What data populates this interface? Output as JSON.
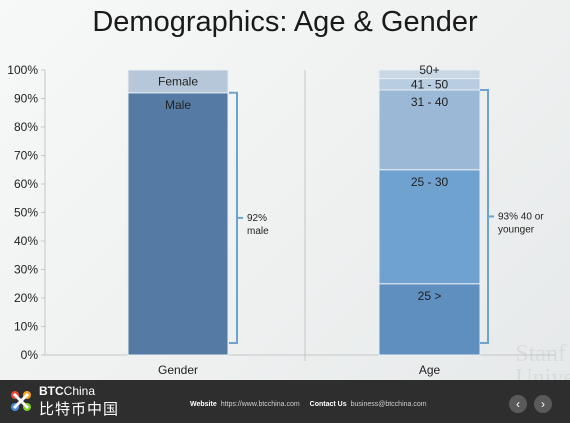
{
  "slide": {
    "title": "Demographics: Age & Gender",
    "watermark_line1": "Stanf",
    "watermark_line2": "Unive"
  },
  "chart_data": {
    "type": "bar",
    "subtype": "stacked-100",
    "ylim": [
      0,
      100
    ],
    "y_ticks": [
      "0%",
      "10%",
      "20%",
      "30%",
      "40%",
      "50%",
      "60%",
      "70%",
      "80%",
      "90%",
      "100%"
    ],
    "categories": [
      "Gender",
      "Age"
    ],
    "stacks": [
      {
        "category": "Gender",
        "segments": [
          {
            "label": "Male",
            "value": 92,
            "color": "#557aa3"
          },
          {
            "label": "Female",
            "value": 8,
            "color": "#b6c7d9"
          }
        ],
        "bracket": {
          "from": 0,
          "to": 92,
          "text": [
            "92%",
            "male"
          ]
        }
      },
      {
        "category": "Age",
        "segments": [
          {
            "label": "25 >",
            "value": 25,
            "color": "#5e8fbe"
          },
          {
            "label": "25 - 30",
            "value": 40,
            "color": "#6fa2cf"
          },
          {
            "label": "31 - 40",
            "value": 28,
            "color": "#9bb9d7"
          },
          {
            "label": "41 - 50",
            "value": 4,
            "color": "#b9cde0"
          },
          {
            "label": "50+",
            "value": 3,
            "color": "#c9d7e5"
          }
        ],
        "bracket": {
          "from": 0,
          "to": 93,
          "text": [
            "93% 40 or",
            "younger"
          ]
        }
      }
    ]
  },
  "footer": {
    "brand_en_bold": "BTC",
    "brand_en_rest": "China",
    "brand_zh": "比特币中国",
    "website_label": "Website",
    "website_value": "https://www.btcchina.com",
    "contact_label": "Contact Us",
    "contact_value": "business@btcchina.com",
    "prev_icon": "‹",
    "next_icon": "›"
  }
}
